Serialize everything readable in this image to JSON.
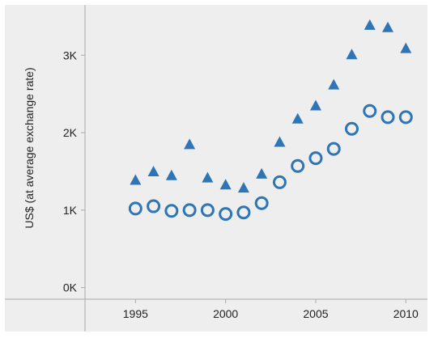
{
  "chart_data": {
    "type": "scatter",
    "title": "",
    "xlabel": "",
    "ylabel": "US$ (at average exchange rate)",
    "xlim": [
      1992.2,
      2011.2
    ],
    "ylim": [
      -150,
      3650
    ],
    "x_ticks": [
      1995,
      2000,
      2005,
      2010
    ],
    "x_tick_labels": [
      "1995",
      "2000",
      "2005",
      "2010"
    ],
    "y_ticks": [
      0,
      1000,
      2000,
      3000
    ],
    "y_tick_labels": [
      "0K",
      "1K",
      "2K",
      "3K"
    ],
    "grid": false,
    "legend": "none",
    "colors": {
      "plot_background": "#eeeeee",
      "series": "#2e75b6",
      "axis": "#aaaaaa"
    },
    "series": [
      {
        "marker": "triangle",
        "x": [
          1995,
          1996,
          1997,
          1998,
          1999,
          2000,
          2001,
          2002,
          2003,
          2004,
          2005,
          2006,
          2007,
          2008,
          2009,
          2010
        ],
        "values": [
          1390,
          1500,
          1450,
          1850,
          1420,
          1330,
          1290,
          1470,
          1880,
          2180,
          2350,
          2620,
          3010,
          3390,
          3360,
          3090
        ]
      },
      {
        "marker": "circle-open",
        "x": [
          1995,
          1996,
          1997,
          1998,
          1999,
          2000,
          2001,
          2002,
          2003,
          2004,
          2005,
          2006,
          2007,
          2008,
          2009,
          2010
        ],
        "values": [
          1020,
          1050,
          990,
          1000,
          1000,
          950,
          970,
          1090,
          1360,
          1570,
          1670,
          1790,
          2050,
          2280,
          2200,
          2200
        ]
      }
    ]
  }
}
